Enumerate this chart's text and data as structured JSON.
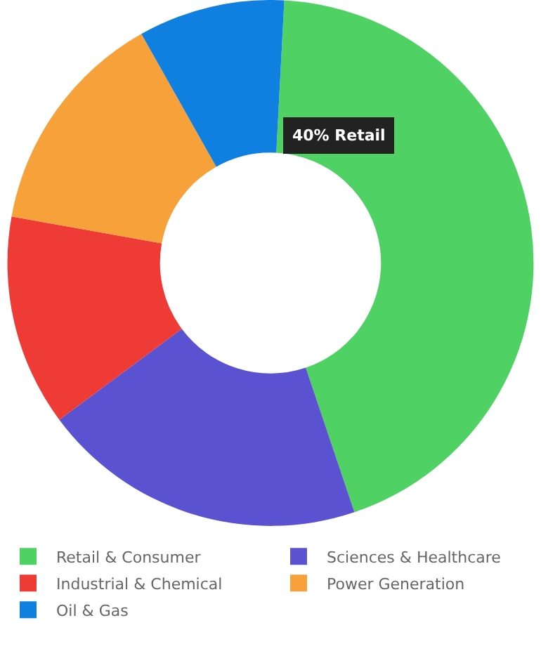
{
  "chart_data": {
    "type": "donut",
    "categories": [
      "Retail & Consumer",
      "Sciences & Healthcare",
      "Industrial & Chemical",
      "Power Generation",
      "Oil & Gas"
    ],
    "values": [
      44,
      20,
      13,
      14,
      9
    ],
    "colors": [
      "#4fd163",
      "#5a52d0",
      "#ef3b36",
      "#f7a13a",
      "#0f7fe0"
    ],
    "annotations": [
      "40% Retail"
    ],
    "legend": "bottom"
  }
}
